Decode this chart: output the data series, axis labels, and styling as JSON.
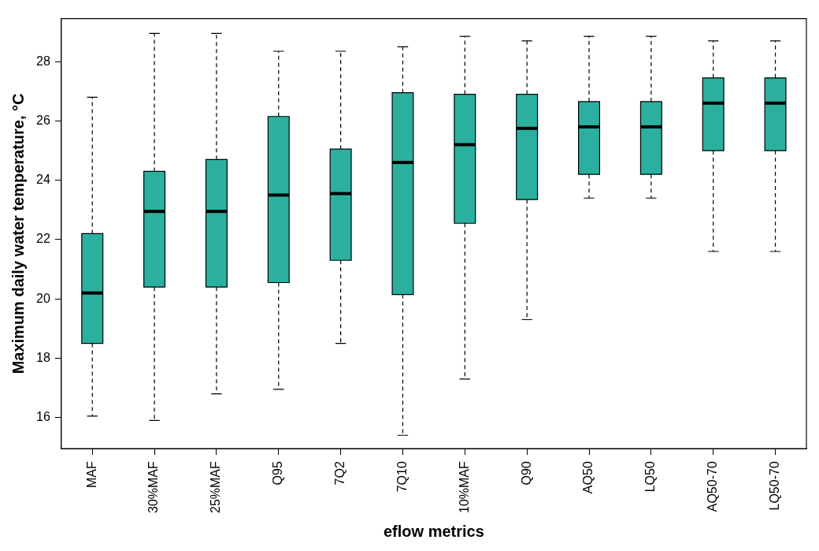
{
  "chart_data": {
    "type": "box",
    "xlabel": "eflow metrics",
    "ylabel": "Maximum daily water temperature, °C",
    "categories": [
      "MAF",
      "30%MAF",
      "25%MAF",
      "Q95",
      "7Q2",
      "7Q10",
      "10%MAF",
      "Q90",
      "AQ50",
      "LQ50",
      "AQ50-70",
      "LQ50-70"
    ],
    "color": "#2bb09f",
    "boxes": [
      {
        "low": 16.05,
        "q1": 18.5,
        "median": 20.2,
        "q3": 22.2,
        "high": 26.8
      },
      {
        "low": 15.9,
        "q1": 20.4,
        "median": 22.95,
        "q3": 24.3,
        "high": 28.95
      },
      {
        "low": 16.8,
        "q1": 20.4,
        "median": 22.95,
        "q3": 24.7,
        "high": 28.95
      },
      {
        "low": 16.95,
        "q1": 20.55,
        "median": 23.5,
        "q3": 26.15,
        "high": 28.35
      },
      {
        "low": 18.5,
        "q1": 21.3,
        "median": 23.55,
        "q3": 25.05,
        "high": 28.35
      },
      {
        "low": 15.4,
        "q1": 20.15,
        "median": 24.6,
        "q3": 26.95,
        "high": 28.5
      },
      {
        "low": 17.3,
        "q1": 22.55,
        "median": 25.2,
        "q3": 26.9,
        "high": 28.85
      },
      {
        "low": 19.3,
        "q1": 23.35,
        "median": 25.75,
        "q3": 26.9,
        "high": 28.7
      },
      {
        "low": 23.4,
        "q1": 24.2,
        "median": 25.8,
        "q3": 26.65,
        "high": 28.85
      },
      {
        "low": 23.4,
        "q1": 24.2,
        "median": 25.8,
        "q3": 26.65,
        "high": 28.85
      },
      {
        "low": 21.6,
        "q1": 25.0,
        "median": 26.6,
        "q3": 27.45,
        "high": 28.7
      },
      {
        "low": 21.6,
        "q1": 25.0,
        "median": 26.6,
        "q3": 27.45,
        "high": 28.7
      }
    ],
    "ylim": [
      14.95,
      29.45
    ],
    "yticks": [
      16,
      18,
      20,
      22,
      24,
      26,
      28
    ],
    "grid": false,
    "legend": false
  }
}
